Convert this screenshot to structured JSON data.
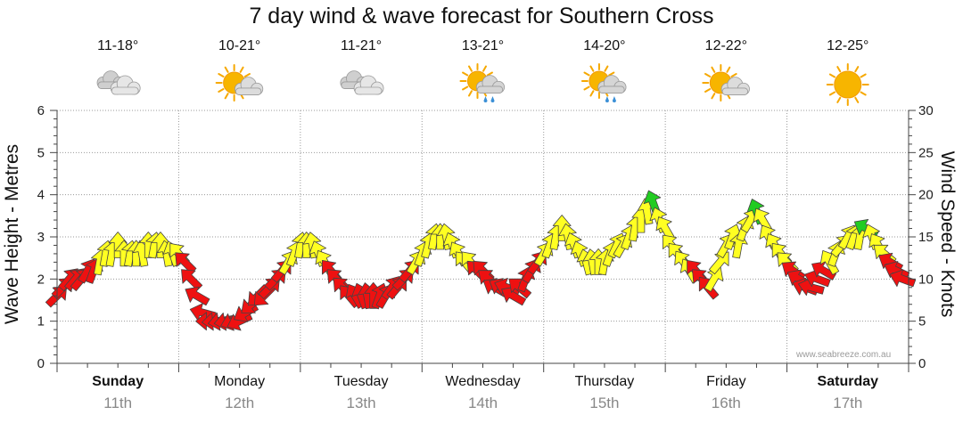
{
  "chart_data": {
    "type": "line",
    "title": "7 day wind & wave forecast for Southern Cross",
    "ylabel": "Wave Height - Metres",
    "y2label": "Wind Speed - Knots",
    "ylim": [
      0,
      6
    ],
    "y2lim": [
      0,
      30
    ],
    "yticks": [
      "0",
      "1",
      "2",
      "3",
      "4",
      "5",
      "6"
    ],
    "y2ticks": [
      "0",
      "5",
      "10",
      "15",
      "20",
      "25",
      "30"
    ],
    "days": [
      {
        "name": "Sunday",
        "date": "11th",
        "temp": "11-18°",
        "weather": "cloudy",
        "bold": true
      },
      {
        "name": "Monday",
        "date": "12th",
        "temp": "10-21°",
        "weather": "partly-cloudy",
        "bold": false
      },
      {
        "name": "Tuesday",
        "date": "13th",
        "temp": "11-21°",
        "weather": "cloudy",
        "bold": false
      },
      {
        "name": "Wednesday",
        "date": "14th",
        "temp": "13-21°",
        "weather": "showers",
        "bold": false
      },
      {
        "name": "Thursday",
        "date": "15th",
        "temp": "14-20°",
        "weather": "showers",
        "bold": false
      },
      {
        "name": "Friday",
        "date": "16th",
        "temp": "12-22°",
        "weather": "partly-cloudy",
        "bold": false
      },
      {
        "name": "Saturday",
        "date": "17th",
        "temp": "12-25°",
        "weather": "sunny",
        "bold": true
      }
    ],
    "wind_series": {
      "name": "Wind Speed (knots)",
      "legend_colors": {
        "red": "#ee1111",
        "yellow": "#ffff22",
        "green": "#22cc22"
      },
      "points": [
        {
          "t": 0.0,
          "kn": 8,
          "dir": 45,
          "c": "red"
        },
        {
          "t": 0.1,
          "kn": 9,
          "dir": 45,
          "c": "red"
        },
        {
          "t": 0.2,
          "kn": 10,
          "dir": 40,
          "c": "red"
        },
        {
          "t": 0.3,
          "kn": 10,
          "dir": 40,
          "c": "red"
        },
        {
          "t": 0.4,
          "kn": 10,
          "dir": 40,
          "c": "red"
        },
        {
          "t": 0.5,
          "kn": 11,
          "dir": 30,
          "c": "red"
        },
        {
          "t": 0.6,
          "kn": 11,
          "dir": 20,
          "c": "red"
        },
        {
          "t": 0.7,
          "kn": 12,
          "dir": 10,
          "c": "yellow"
        },
        {
          "t": 0.8,
          "kn": 13,
          "dir": 10,
          "c": "yellow"
        },
        {
          "t": 0.9,
          "kn": 13,
          "dir": 10,
          "c": "yellow"
        },
        {
          "t": 1.0,
          "kn": 14,
          "dir": 0,
          "c": "yellow"
        },
        {
          "t": 1.1,
          "kn": 13,
          "dir": 0,
          "c": "yellow"
        },
        {
          "t": 1.2,
          "kn": 13,
          "dir": 10,
          "c": "yellow"
        },
        {
          "t": 1.3,
          "kn": 13,
          "dir": 0,
          "c": "yellow"
        },
        {
          "t": 1.4,
          "kn": 13,
          "dir": 350,
          "c": "yellow"
        },
        {
          "t": 1.5,
          "kn": 14,
          "dir": 0,
          "c": "yellow"
        },
        {
          "t": 1.6,
          "kn": 14,
          "dir": 10,
          "c": "yellow"
        },
        {
          "t": 1.7,
          "kn": 14,
          "dir": 0,
          "c": "yellow"
        },
        {
          "t": 1.8,
          "kn": 13,
          "dir": 350,
          "c": "yellow"
        },
        {
          "t": 1.9,
          "kn": 13,
          "dir": 340,
          "c": "yellow"
        },
        {
          "t": 2.0,
          "kn": 13,
          "dir": 320,
          "c": "yellow"
        },
        {
          "t": 2.1,
          "kn": 12,
          "dir": 315,
          "c": "red"
        },
        {
          "t": 2.2,
          "kn": 10,
          "dir": 315,
          "c": "red"
        },
        {
          "t": 2.3,
          "kn": 8,
          "dir": 300,
          "c": "red"
        },
        {
          "t": 2.4,
          "kn": 6,
          "dir": 285,
          "c": "red"
        },
        {
          "t": 2.5,
          "kn": 5,
          "dir": 270,
          "c": "red"
        },
        {
          "t": 2.6,
          "kn": 5,
          "dir": 265,
          "c": "red"
        },
        {
          "t": 2.7,
          "kn": 5,
          "dir": 260,
          "c": "red"
        },
        {
          "t": 2.8,
          "kn": 5,
          "dir": 260,
          "c": "red"
        },
        {
          "t": 2.9,
          "kn": 5,
          "dir": 250,
          "c": "red"
        },
        {
          "t": 3.0,
          "kn": 5,
          "dir": 245,
          "c": "red"
        },
        {
          "t": 3.1,
          "kn": 6,
          "dir": 240,
          "c": "red"
        },
        {
          "t": 3.2,
          "kn": 7,
          "dir": 230,
          "c": "red"
        },
        {
          "t": 3.3,
          "kn": 8,
          "dir": 225,
          "c": "red"
        },
        {
          "t": 3.4,
          "kn": 8,
          "dir": 225,
          "c": "red"
        },
        {
          "t": 3.5,
          "kn": 9,
          "dir": 45,
          "c": "red"
        },
        {
          "t": 3.6,
          "kn": 10,
          "dir": 45,
          "c": "red"
        },
        {
          "t": 3.7,
          "kn": 11,
          "dir": 40,
          "c": "red"
        },
        {
          "t": 3.8,
          "kn": 12,
          "dir": 30,
          "c": "yellow"
        },
        {
          "t": 3.9,
          "kn": 13,
          "dir": 20,
          "c": "yellow"
        },
        {
          "t": 4.0,
          "kn": 14,
          "dir": 10,
          "c": "yellow"
        },
        {
          "t": 4.1,
          "kn": 14,
          "dir": 0,
          "c": "yellow"
        },
        {
          "t": 4.2,
          "kn": 14,
          "dir": 350,
          "c": "yellow"
        },
        {
          "t": 4.3,
          "kn": 13,
          "dir": 340,
          "c": "yellow"
        },
        {
          "t": 4.4,
          "kn": 12,
          "dir": 330,
          "c": "yellow"
        },
        {
          "t": 4.5,
          "kn": 11,
          "dir": 320,
          "c": "red"
        },
        {
          "t": 4.6,
          "kn": 10,
          "dir": 315,
          "c": "red"
        },
        {
          "t": 4.7,
          "kn": 9,
          "dir": 315,
          "c": "red"
        },
        {
          "t": 4.8,
          "kn": 8,
          "dir": 320,
          "c": "red"
        },
        {
          "t": 4.9,
          "kn": 8,
          "dir": 330,
          "c": "red"
        },
        {
          "t": 5.0,
          "kn": 8,
          "dir": 340,
          "c": "red"
        },
        {
          "t": 5.1,
          "kn": 8,
          "dir": 350,
          "c": "red"
        },
        {
          "t": 5.2,
          "kn": 8,
          "dir": 0,
          "c": "red"
        },
        {
          "t": 5.3,
          "kn": 8,
          "dir": 20,
          "c": "red"
        },
        {
          "t": 5.4,
          "kn": 8,
          "dir": 30,
          "c": "red"
        },
        {
          "t": 5.5,
          "kn": 9,
          "dir": 35,
          "c": "red"
        },
        {
          "t": 5.6,
          "kn": 9,
          "dir": 40,
          "c": "red"
        },
        {
          "t": 5.7,
          "kn": 10,
          "dir": 45,
          "c": "red"
        },
        {
          "t": 5.8,
          "kn": 11,
          "dir": 40,
          "c": "red"
        },
        {
          "t": 5.9,
          "kn": 12,
          "dir": 30,
          "c": "yellow"
        },
        {
          "t": 6.0,
          "kn": 13,
          "dir": 20,
          "c": "yellow"
        },
        {
          "t": 6.1,
          "kn": 14,
          "dir": 15,
          "c": "yellow"
        },
        {
          "t": 6.2,
          "kn": 15,
          "dir": 10,
          "c": "yellow"
        },
        {
          "t": 6.3,
          "kn": 15,
          "dir": 0,
          "c": "yellow"
        },
        {
          "t": 6.4,
          "kn": 15,
          "dir": 350,
          "c": "yellow"
        },
        {
          "t": 6.5,
          "kn": 14,
          "dir": 340,
          "c": "yellow"
        },
        {
          "t": 6.6,
          "kn": 13,
          "dir": 330,
          "c": "yellow"
        },
        {
          "t": 6.7,
          "kn": 12,
          "dir": 320,
          "c": "yellow"
        },
        {
          "t": 6.8,
          "kn": 12,
          "dir": 320,
          "c": "yellow"
        },
        {
          "t": 6.9,
          "kn": 11,
          "dir": 315,
          "c": "red"
        },
        {
          "t": 7.0,
          "kn": 11,
          "dir": 315,
          "c": "red"
        },
        {
          "t": 7.1,
          "kn": 10,
          "dir": 310,
          "c": "red"
        },
        {
          "t": 7.2,
          "kn": 9,
          "dir": 300,
          "c": "red"
        },
        {
          "t": 7.3,
          "kn": 9,
          "dir": 300,
          "c": "red"
        },
        {
          "t": 7.4,
          "kn": 9,
          "dir": 290,
          "c": "red"
        },
        {
          "t": 7.5,
          "kn": 8,
          "dir": 300,
          "c": "red"
        },
        {
          "t": 7.6,
          "kn": 9,
          "dir": 310,
          "c": "red"
        },
        {
          "t": 7.7,
          "kn": 10,
          "dir": 20,
          "c": "red"
        },
        {
          "t": 7.8,
          "kn": 11,
          "dir": 30,
          "c": "red"
        },
        {
          "t": 7.9,
          "kn": 12,
          "dir": 35,
          "c": "red"
        },
        {
          "t": 8.0,
          "kn": 13,
          "dir": 30,
          "c": "yellow"
        },
        {
          "t": 8.1,
          "kn": 14,
          "dir": 20,
          "c": "yellow"
        },
        {
          "t": 8.2,
          "kn": 15,
          "dir": 10,
          "c": "yellow"
        },
        {
          "t": 8.3,
          "kn": 16,
          "dir": 0,
          "c": "yellow"
        },
        {
          "t": 8.4,
          "kn": 15,
          "dir": 350,
          "c": "yellow"
        },
        {
          "t": 8.5,
          "kn": 14,
          "dir": 340,
          "c": "yellow"
        },
        {
          "t": 8.6,
          "kn": 13,
          "dir": 340,
          "c": "yellow"
        },
        {
          "t": 8.7,
          "kn": 12,
          "dir": 345,
          "c": "yellow"
        },
        {
          "t": 8.8,
          "kn": 12,
          "dir": 350,
          "c": "yellow"
        },
        {
          "t": 8.9,
          "kn": 12,
          "dir": 0,
          "c": "yellow"
        },
        {
          "t": 9.0,
          "kn": 12,
          "dir": 10,
          "c": "yellow"
        },
        {
          "t": 9.1,
          "kn": 13,
          "dir": 20,
          "c": "yellow"
        },
        {
          "t": 9.2,
          "kn": 14,
          "dir": 25,
          "c": "yellow"
        },
        {
          "t": 9.3,
          "kn": 14,
          "dir": 30,
          "c": "yellow"
        },
        {
          "t": 9.4,
          "kn": 15,
          "dir": 20,
          "c": "yellow"
        },
        {
          "t": 9.5,
          "kn": 16,
          "dir": 10,
          "c": "yellow"
        },
        {
          "t": 9.6,
          "kn": 17,
          "dir": 0,
          "c": "yellow"
        },
        {
          "t": 9.7,
          "kn": 18,
          "dir": 350,
          "c": "yellow"
        },
        {
          "t": 9.8,
          "kn": 19,
          "dir": 340,
          "c": "green"
        },
        {
          "t": 9.9,
          "kn": 17,
          "dir": 340,
          "c": "yellow"
        },
        {
          "t": 10.0,
          "kn": 16,
          "dir": 330,
          "c": "yellow"
        },
        {
          "t": 10.1,
          "kn": 14,
          "dir": 320,
          "c": "yellow"
        },
        {
          "t": 10.2,
          "kn": 13,
          "dir": 320,
          "c": "yellow"
        },
        {
          "t": 10.3,
          "kn": 12,
          "dir": 325,
          "c": "yellow"
        },
        {
          "t": 10.4,
          "kn": 11,
          "dir": 330,
          "c": "yellow"
        },
        {
          "t": 10.5,
          "kn": 11,
          "dir": 320,
          "c": "red"
        },
        {
          "t": 10.6,
          "kn": 10,
          "dir": 315,
          "c": "red"
        },
        {
          "t": 10.7,
          "kn": 9,
          "dir": 320,
          "c": "red"
        },
        {
          "t": 10.8,
          "kn": 10,
          "dir": 30,
          "c": "yellow"
        },
        {
          "t": 10.9,
          "kn": 12,
          "dir": 40,
          "c": "yellow"
        },
        {
          "t": 11.0,
          "kn": 14,
          "dir": 30,
          "c": "yellow"
        },
        {
          "t": 11.1,
          "kn": 15,
          "dir": 20,
          "c": "yellow"
        },
        {
          "t": 11.2,
          "kn": 14,
          "dir": 10,
          "c": "yellow"
        },
        {
          "t": 11.3,
          "kn": 16,
          "dir": 20,
          "c": "yellow"
        },
        {
          "t": 11.4,
          "kn": 17,
          "dir": 30,
          "c": "yellow"
        },
        {
          "t": 11.5,
          "kn": 18,
          "dir": 340,
          "c": "green"
        },
        {
          "t": 11.6,
          "kn": 17,
          "dir": 330,
          "c": "yellow"
        },
        {
          "t": 11.7,
          "kn": 15,
          "dir": 330,
          "c": "yellow"
        },
        {
          "t": 11.8,
          "kn": 14,
          "dir": 330,
          "c": "yellow"
        },
        {
          "t": 11.9,
          "kn": 13,
          "dir": 320,
          "c": "yellow"
        },
        {
          "t": 12.0,
          "kn": 12,
          "dir": 315,
          "c": "yellow"
        },
        {
          "t": 12.1,
          "kn": 11,
          "dir": 305,
          "c": "red"
        },
        {
          "t": 12.2,
          "kn": 10,
          "dir": 300,
          "c": "red"
        },
        {
          "t": 12.3,
          "kn": 9,
          "dir": 290,
          "c": "red"
        },
        {
          "t": 12.4,
          "kn": 9,
          "dir": 285,
          "c": "red"
        },
        {
          "t": 12.5,
          "kn": 10,
          "dir": 290,
          "c": "red"
        },
        {
          "t": 12.6,
          "kn": 11,
          "dir": 300,
          "c": "red"
        },
        {
          "t": 12.7,
          "kn": 12,
          "dir": 330,
          "c": "yellow"
        },
        {
          "t": 12.8,
          "kn": 13,
          "dir": 20,
          "c": "yellow"
        },
        {
          "t": 12.9,
          "kn": 14,
          "dir": 40,
          "c": "yellow"
        },
        {
          "t": 13.0,
          "kn": 15,
          "dir": 30,
          "c": "yellow"
        },
        {
          "t": 13.1,
          "kn": 15,
          "dir": 20,
          "c": "yellow"
        },
        {
          "t": 13.2,
          "kn": 15,
          "dir": 10,
          "c": "yellow"
        },
        {
          "t": 13.3,
          "kn": 16,
          "dir": 300,
          "c": "green"
        },
        {
          "t": 13.4,
          "kn": 15,
          "dir": 340,
          "c": "yellow"
        },
        {
          "t": 13.5,
          "kn": 14,
          "dir": 330,
          "c": "yellow"
        },
        {
          "t": 13.6,
          "kn": 13,
          "dir": 310,
          "c": "yellow"
        },
        {
          "t": 13.7,
          "kn": 12,
          "dir": 300,
          "c": "red"
        },
        {
          "t": 13.8,
          "kn": 11,
          "dir": 295,
          "c": "red"
        },
        {
          "t": 13.9,
          "kn": 10,
          "dir": 290,
          "c": "red"
        }
      ]
    }
  },
  "watermark": "www.seabreeze.com.au"
}
